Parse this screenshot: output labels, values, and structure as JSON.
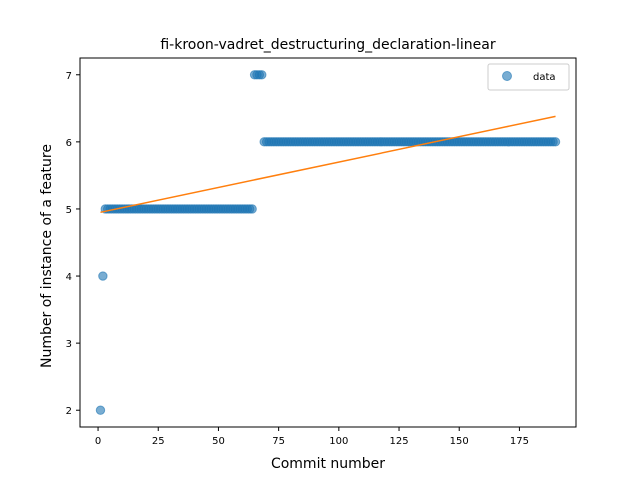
{
  "chart_data": {
    "type": "scatter",
    "title": "fi-kroon-vadret_destructuring_declaration-linear",
    "xlabel": "Commit number",
    "ylabel": "Number of instance of a feature",
    "xlim": [
      -7.5,
      198.5
    ],
    "ylim": [
      1.75,
      7.25
    ],
    "xticks": [
      0,
      25,
      50,
      75,
      100,
      125,
      150,
      175
    ],
    "yticks": [
      2,
      3,
      4,
      5,
      6,
      7
    ],
    "grid": false,
    "legend_position": "top-right",
    "series": [
      {
        "name": "data",
        "kind": "scatter",
        "color": "#1f77b4",
        "segments": [
          {
            "x_start": 1,
            "x_end": 1,
            "y": 2
          },
          {
            "x_start": 2,
            "x_end": 2,
            "y": 4
          },
          {
            "x_start": 3,
            "x_end": 64,
            "y": 5
          },
          {
            "x_start": 65,
            "x_end": 68,
            "y": 7
          },
          {
            "x_start": 69,
            "x_end": 190,
            "y": 6
          }
        ]
      },
      {
        "kind": "line",
        "color": "#ff7f0e",
        "x": [
          1,
          190
        ],
        "y": [
          4.95,
          6.38
        ]
      }
    ]
  }
}
